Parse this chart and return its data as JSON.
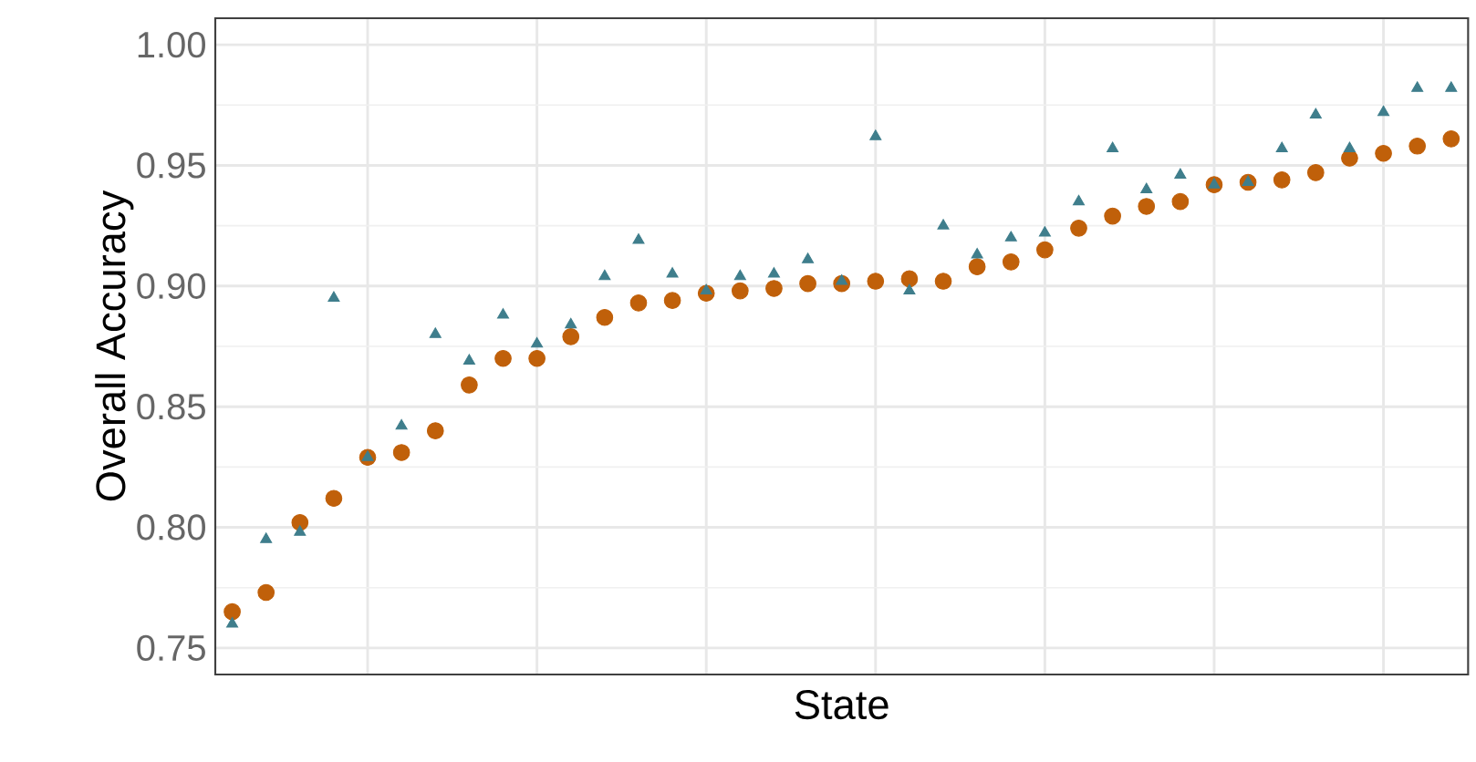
{
  "chart_data": {
    "type": "scatter",
    "xlabel": "State",
    "ylabel": "Overall Accuracy",
    "categories": [
      null,
      null,
      null,
      null,
      null,
      null,
      null,
      null,
      null,
      null,
      null,
      null,
      null,
      null,
      null,
      null,
      null,
      null,
      null,
      null,
      null,
      null,
      null,
      null,
      null,
      null,
      null,
      null,
      null,
      null,
      null,
      null,
      null,
      null,
      null,
      null,
      null
    ],
    "ylim": [
      0.739,
      1.011
    ],
    "yticks": [
      {
        "value": 0.75,
        "label": "0.75"
      },
      {
        "value": 0.8,
        "label": "0.80"
      },
      {
        "value": 0.85,
        "label": "0.85"
      },
      {
        "value": 0.9,
        "label": "0.90"
      },
      {
        "value": 0.95,
        "label": "0.95"
      },
      {
        "value": 1.0,
        "label": "1.00"
      }
    ],
    "grid": true,
    "tick_labels": "y",
    "series": [
      {
        "color": "#c0600a",
        "marker": "circle",
        "values": [
          0.765,
          0.773,
          0.802,
          0.812,
          0.829,
          0.831,
          0.84,
          0.859,
          0.87,
          0.87,
          0.879,
          0.887,
          0.893,
          0.894,
          0.897,
          0.898,
          0.899,
          0.901,
          0.901,
          0.902,
          0.903,
          0.902,
          0.908,
          0.91,
          0.915,
          0.924,
          0.929,
          0.933,
          0.935,
          0.942,
          0.943,
          0.944,
          0.947,
          0.953,
          0.955,
          0.958,
          0.961
        ]
      },
      {
        "color": "#3f7e8c",
        "marker": "triangle",
        "values": [
          0.76,
          0.795,
          0.798,
          0.895,
          0.829,
          0.842,
          0.88,
          0.869,
          0.888,
          0.876,
          0.884,
          0.904,
          0.919,
          0.905,
          0.898,
          0.904,
          0.905,
          0.911,
          0.902,
          0.962,
          0.898,
          0.925,
          0.913,
          0.92,
          0.922,
          0.935,
          0.957,
          0.94,
          0.946,
          0.942,
          0.943,
          0.957,
          0.971,
          0.957,
          0.972,
          0.982,
          0.982
        ]
      }
    ]
  }
}
